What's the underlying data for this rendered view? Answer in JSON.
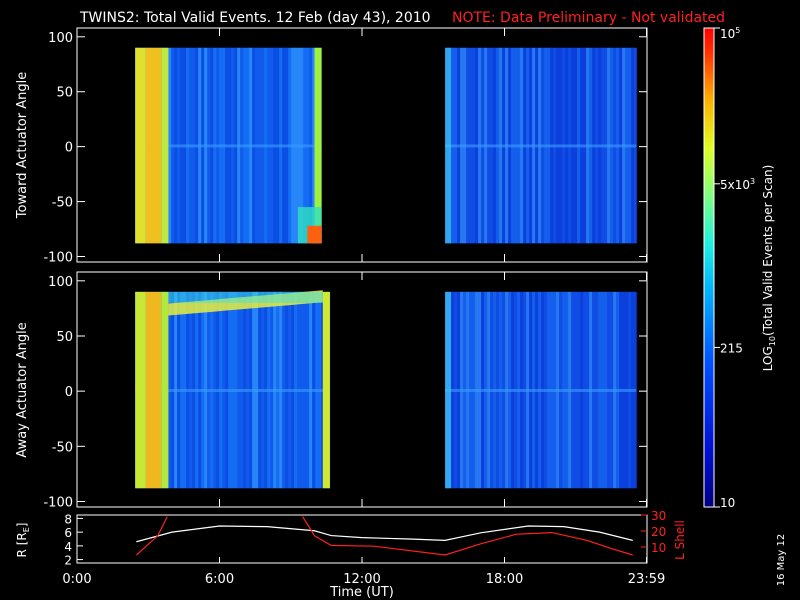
{
  "header": {
    "title": "TWINS2: Total Valid Events. 12 Feb (day  43), 2010",
    "note": "NOTE: Data Preliminary - Not validated",
    "note_color": "#ff2020"
  },
  "footer": {
    "date_stamp": "16 May 12"
  },
  "colors": {
    "background": "#000000",
    "axes": "#ffffff",
    "l_shell": "#ff2020",
    "radius": "#ffffff"
  },
  "chart_data": [
    {
      "type": "heatmap",
      "panel": "top",
      "ylabel": "Toward Actuator Angle",
      "ylim": [
        -105,
        108
      ],
      "yticks": [
        -100,
        -50,
        0,
        50,
        100
      ],
      "xlim": [
        0,
        24
      ],
      "data_blocks": [
        {
          "x_start": 2.45,
          "x_end": 10.3,
          "y_start": -88,
          "y_end": 90
        },
        {
          "x_start": 15.5,
          "x_end": 23.55,
          "y_start": -88,
          "y_end": 90
        }
      ],
      "features": [
        {
          "description": "high-count edge columns",
          "x_ranges": [
            [
              2.45,
              3.85
            ],
            [
              10.0,
              10.3
            ]
          ]
        },
        {
          "description": "hot corner",
          "x_range": [
            9.0,
            10.3
          ],
          "y_range": [
            -88,
            -55
          ]
        }
      ]
    },
    {
      "type": "heatmap",
      "panel": "bottom",
      "ylabel": "Away Actuator Angle",
      "ylim": [
        -105,
        108
      ],
      "yticks": [
        -100,
        -50,
        0,
        50,
        100
      ],
      "xlim": [
        0,
        24
      ],
      "data_blocks": [
        {
          "x_start": 2.45,
          "x_end": 10.65,
          "y_start": -88,
          "y_end": 90
        },
        {
          "x_start": 15.5,
          "x_end": 23.55,
          "y_start": -88,
          "y_end": 90
        }
      ],
      "features": [
        {
          "description": "bright band",
          "x_range": [
            3.8,
            10.65
          ],
          "y_range": [
            68,
            90
          ]
        }
      ]
    },
    {
      "type": "line",
      "panel": "ephemeris",
      "xlabel": "Time (UT)",
      "x_tick_labels": [
        "0:00",
        "6:00",
        "12:00",
        "18:00",
        "23:59"
      ],
      "x_ticks": [
        0,
        6,
        12,
        18,
        23.98
      ],
      "y_left": {
        "label": "R [R",
        "label_sub": "E",
        "label_end": "]",
        "ticks": [
          2,
          4,
          6,
          8
        ],
        "range": [
          1.5,
          8.5
        ]
      },
      "y_right": {
        "label": "L Shell",
        "ticks": [
          10,
          20,
          30
        ],
        "tick_labels": [
          "10",
          "20",
          "30"
        ],
        "range": [
          0,
          30
        ]
      },
      "series": [
        {
          "name": "R",
          "axis": "left",
          "x": [
            2.5,
            4,
            6,
            8,
            10,
            10.7,
            12,
            14,
            15.5,
            17,
            19,
            20.5,
            22,
            23.4
          ],
          "y": [
            4.6,
            6.0,
            6.9,
            6.8,
            6.2,
            5.5,
            5.2,
            5.0,
            4.8,
            5.9,
            6.9,
            6.8,
            6.0,
            4.8
          ]
        },
        {
          "name": "L Shell",
          "axis": "right",
          "segments": [
            {
              "x": [
                2.5,
                3.4,
                3.8
              ],
              "y": [
                5,
                17,
                29
              ]
            },
            {
              "x": [
                9.5,
                10.0,
                10.7,
                12.5,
                15.5,
                17.0,
                18.5,
                20.0,
                21.5,
                22.5,
                23.4
              ],
              "y": [
                29,
                17,
                11,
                10.5,
                5,
                12,
                18,
                19,
                14,
                9,
                5
              ]
            }
          ]
        }
      ]
    },
    {
      "type": "colorbar",
      "label": "LOG",
      "label_sub": "10",
      "label_end": "(Total Valid Events per Scan)",
      "scale": "log",
      "range": [
        10,
        100000
      ],
      "ticks": [
        {
          "value": 10,
          "label": "10"
        },
        {
          "value": 215,
          "label": "215"
        },
        {
          "value": 5000,
          "label": "5x10",
          "sup": "3"
        },
        {
          "value": 100000,
          "label": "10",
          "sup": "5"
        }
      ]
    }
  ]
}
